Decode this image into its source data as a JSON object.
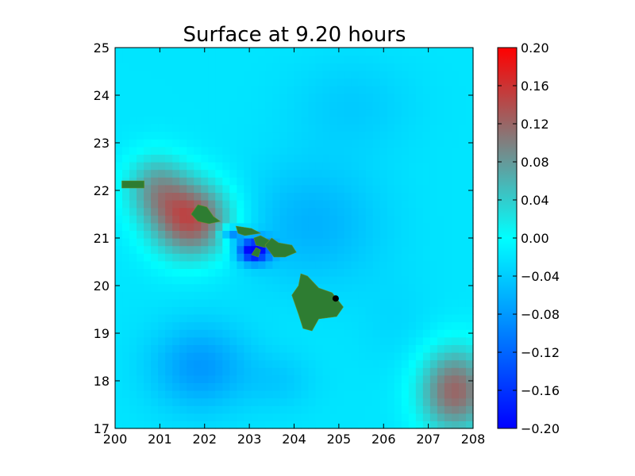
{
  "chart_data": {
    "type": "heatmap",
    "title": "Surface at 9.20 hours",
    "xlabel": "",
    "ylabel": "",
    "xlim": [
      200,
      208
    ],
    "ylim": [
      17,
      25
    ],
    "xticks": [
      "200",
      "201",
      "202",
      "203",
      "204",
      "205",
      "206",
      "207",
      "208"
    ],
    "yticks": [
      "17",
      "18",
      "19",
      "20",
      "21",
      "22",
      "23",
      "24",
      "25"
    ],
    "colorbar": {
      "range": [
        -0.2,
        0.2
      ],
      "ticks": [
        "0.20",
        "0.16",
        "0.12",
        "0.08",
        "0.04",
        "0.00",
        "−0.04",
        "−0.08",
        "−0.12",
        "−0.16",
        "−0.20"
      ],
      "colors": [
        "#0000ff",
        "#00ffff",
        "#ff0000"
      ]
    },
    "field_features": [
      {
        "x": 201.7,
        "y": 21.4,
        "sx": 0.9,
        "sy": 0.8,
        "value": 0.14
      },
      {
        "x": 200.9,
        "y": 22.1,
        "sx": 0.7,
        "sy": 0.7,
        "value": 0.06
      },
      {
        "x": 207.6,
        "y": 17.8,
        "sx": 0.8,
        "sy": 0.9,
        "value": 0.12
      },
      {
        "x": 203.1,
        "y": 20.75,
        "sx": 0.35,
        "sy": 0.25,
        "value": -0.22
      },
      {
        "x": 202.6,
        "y": 21.1,
        "sx": 0.25,
        "sy": 0.15,
        "value": -0.12
      },
      {
        "x": 204.4,
        "y": 21.3,
        "sx": 1.6,
        "sy": 1.3,
        "value": -0.06
      },
      {
        "x": 201.9,
        "y": 18.3,
        "sx": 1.1,
        "sy": 0.9,
        "value": -0.08
      },
      {
        "x": 203.7,
        "y": 18.0,
        "sx": 0.8,
        "sy": 0.6,
        "value": -0.04
      },
      {
        "x": 205.3,
        "y": 23.8,
        "sx": 1.4,
        "sy": 1.0,
        "value": -0.04
      },
      {
        "x": 203.0,
        "y": 24.6,
        "sx": 1.5,
        "sy": 0.6,
        "value": -0.02
      },
      {
        "x": 206.3,
        "y": 19.2,
        "sx": 0.9,
        "sy": 1.0,
        "value": -0.03
      }
    ],
    "field_base": -0.02,
    "land_color": "#2e7d32",
    "islands": [
      {
        "name": "Niihau",
        "points": [
          [
            200.15,
            22.2
          ],
          [
            200.65,
            22.2
          ],
          [
            200.65,
            22.05
          ],
          [
            200.15,
            22.05
          ]
        ]
      },
      {
        "name": "Kauai",
        "points": [
          [
            201.7,
            21.5
          ],
          [
            201.85,
            21.7
          ],
          [
            202.05,
            21.65
          ],
          [
            202.2,
            21.45
          ],
          [
            202.35,
            21.35
          ],
          [
            202.1,
            21.3
          ],
          [
            201.85,
            21.35
          ]
        ]
      },
      {
        "name": "Oahu",
        "points": [
          [
            202.7,
            21.25
          ],
          [
            203.05,
            21.2
          ],
          [
            203.25,
            21.1
          ],
          [
            202.9,
            21.05
          ],
          [
            202.75,
            21.1
          ]
        ]
      },
      {
        "name": "Molokai",
        "points": [
          [
            203.1,
            21.0
          ],
          [
            203.25,
            21.05
          ],
          [
            203.45,
            20.95
          ],
          [
            203.35,
            20.8
          ],
          [
            203.15,
            20.85
          ]
        ]
      },
      {
        "name": "Maui",
        "points": [
          [
            203.35,
            20.85
          ],
          [
            203.5,
            21.0
          ],
          [
            203.65,
            20.9
          ],
          [
            203.95,
            20.85
          ],
          [
            204.05,
            20.7
          ],
          [
            203.8,
            20.6
          ],
          [
            203.55,
            20.6
          ]
        ]
      },
      {
        "name": "Lanai",
        "points": [
          [
            203.05,
            20.65
          ],
          [
            203.15,
            20.8
          ],
          [
            203.25,
            20.75
          ],
          [
            203.2,
            20.6
          ]
        ]
      },
      {
        "name": "Hawaii",
        "points": [
          [
            204.15,
            20.25
          ],
          [
            204.3,
            20.2
          ],
          [
            204.55,
            19.95
          ],
          [
            204.85,
            19.85
          ],
          [
            205.1,
            19.55
          ],
          [
            204.95,
            19.35
          ],
          [
            204.55,
            19.3
          ],
          [
            204.4,
            19.05
          ],
          [
            204.2,
            19.1
          ],
          [
            204.1,
            19.4
          ],
          [
            203.95,
            19.8
          ],
          [
            204.1,
            20.0
          ]
        ]
      }
    ],
    "marker": {
      "x": 204.93,
      "y": 19.73,
      "color": "#000000"
    }
  }
}
